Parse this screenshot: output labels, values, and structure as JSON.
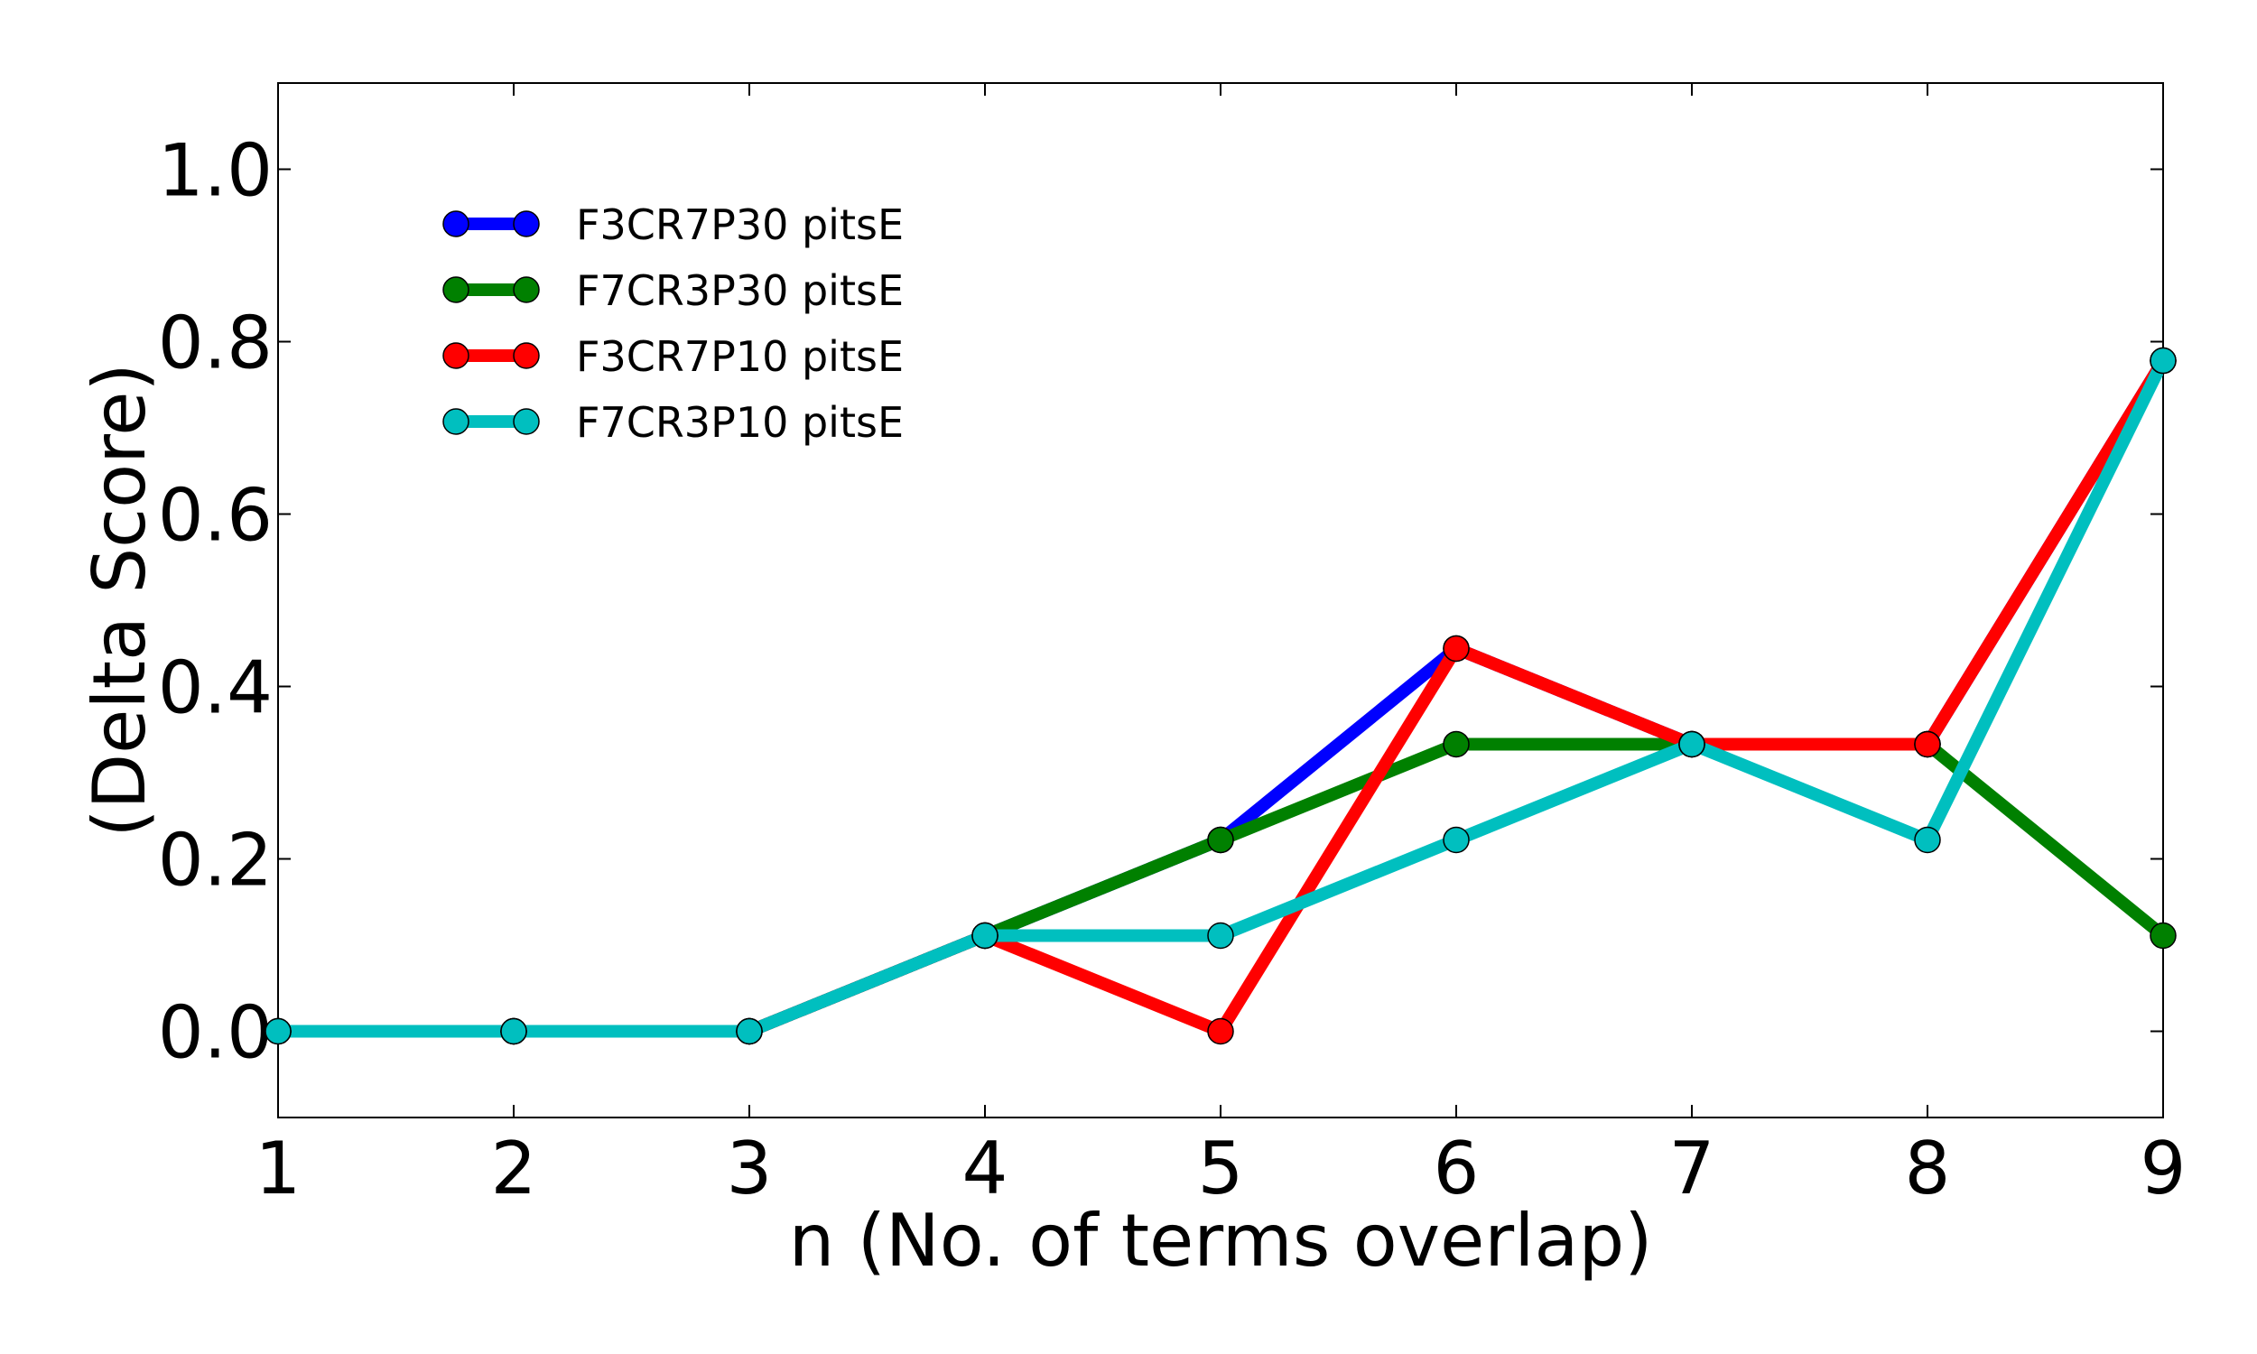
{
  "chart_data": {
    "type": "line",
    "title": "",
    "xlabel": "n (No. of terms overlap)",
    "ylabel": "(Delta Score)",
    "x": [
      1,
      2,
      3,
      4,
      5,
      6,
      7,
      8,
      9
    ],
    "xlim": [
      1,
      9
    ],
    "ylim": [
      -0.1,
      1.1
    ],
    "xticks": [
      1,
      2,
      3,
      4,
      5,
      6,
      7,
      8,
      9
    ],
    "xtick_labels": [
      "1",
      "2",
      "3",
      "4",
      "5",
      "6",
      "7",
      "8",
      "9"
    ],
    "yticks": [
      0.0,
      0.2,
      0.4,
      0.6,
      0.8,
      1.0
    ],
    "ytick_labels": [
      "0.0",
      "0.2",
      "0.4",
      "0.6",
      "0.8",
      "1.0"
    ],
    "grid": false,
    "legend_position": "top-left",
    "series": [
      {
        "name": "F3CR7P30 pitsE",
        "color": "#0000ff",
        "values": [
          0.0,
          0.0,
          0.0,
          0.111,
          0.222,
          0.444,
          0.333,
          0.333,
          0.778
        ]
      },
      {
        "name": "F7CR3P30 pitsE",
        "color": "#008000",
        "values": [
          0.0,
          0.0,
          0.0,
          0.111,
          0.222,
          0.333,
          0.333,
          0.333,
          0.111
        ]
      },
      {
        "name": "F3CR7P10 pitsE",
        "color": "#ff0000",
        "values": [
          0.0,
          0.0,
          0.0,
          0.111,
          0.0,
          0.444,
          0.333,
          0.333,
          0.778
        ]
      },
      {
        "name": "F7CR3P10 pitsE",
        "color": "#00bfbf",
        "values": [
          0.0,
          0.0,
          0.0,
          0.111,
          0.111,
          0.222,
          0.333,
          0.222,
          0.778
        ]
      }
    ]
  }
}
